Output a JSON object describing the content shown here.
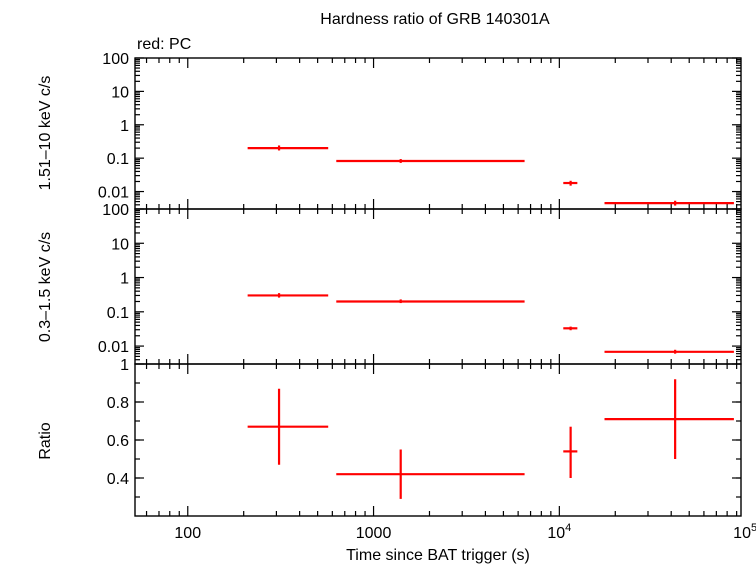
{
  "title": "Hardness ratio of GRB 140301A",
  "legend_text": "red: PC",
  "x_axis": {
    "label": "Time since BAT trigger (s)",
    "scale": "log",
    "ticks": [
      {
        "value": 100,
        "text": "100",
        "sup": ""
      },
      {
        "value": 1000,
        "text": "1000",
        "sup": ""
      },
      {
        "value": 10000,
        "text": "10",
        "sup": "4"
      },
      {
        "value": 100000,
        "text": "10",
        "sup": "5"
      }
    ],
    "range": [
      52,
      95000
    ]
  },
  "colors": {
    "data": "#ff0000",
    "axis": "#000000",
    "background": "#ffffff"
  },
  "chart_data": [
    {
      "type": "scatter",
      "panel": "hard",
      "ylabel": "1.51–10 keV c/s",
      "yscale": "log",
      "ylim": [
        0.003,
        100
      ],
      "yticks": [
        {
          "value": 100,
          "text": "100"
        },
        {
          "value": 10,
          "text": "10"
        },
        {
          "value": 1,
          "text": "1"
        },
        {
          "value": 0.1,
          "text": "0.1"
        },
        {
          "value": 0.01,
          "text": "0.01"
        }
      ],
      "points": [
        {
          "x": 310,
          "xlo": 210,
          "xhi": 570,
          "y": 0.2,
          "ylo": 0.17,
          "yhi": 0.24
        },
        {
          "x": 1400,
          "xlo": 630,
          "xhi": 6500,
          "y": 0.082,
          "ylo": 0.072,
          "yhi": 0.094
        },
        {
          "x": 11500,
          "xlo": 10500,
          "xhi": 12500,
          "y": 0.018,
          "ylo": 0.015,
          "yhi": 0.021
        },
        {
          "x": 42000,
          "xlo": 17500,
          "xhi": 87000,
          "y": 0.0045,
          "ylo": 0.0038,
          "yhi": 0.0053
        }
      ]
    },
    {
      "type": "scatter",
      "panel": "soft",
      "ylabel": "0.3–1.5 keV c/s",
      "yscale": "log",
      "ylim": [
        0.003,
        100
      ],
      "yticks": [
        {
          "value": 100,
          "text": "100"
        },
        {
          "value": 10,
          "text": "10"
        },
        {
          "value": 1,
          "text": "1"
        },
        {
          "value": 0.1,
          "text": "0.1"
        },
        {
          "value": 0.01,
          "text": "0.01"
        }
      ],
      "points": [
        {
          "x": 310,
          "xlo": 210,
          "xhi": 570,
          "y": 0.3,
          "ylo": 0.26,
          "yhi": 0.35
        },
        {
          "x": 1400,
          "xlo": 630,
          "xhi": 6500,
          "y": 0.2,
          "ylo": 0.18,
          "yhi": 0.23
        },
        {
          "x": 11500,
          "xlo": 10500,
          "xhi": 12500,
          "y": 0.033,
          "ylo": 0.029,
          "yhi": 0.037
        },
        {
          "x": 42000,
          "xlo": 17500,
          "xhi": 87000,
          "y": 0.0068,
          "ylo": 0.006,
          "yhi": 0.0078
        }
      ]
    },
    {
      "type": "scatter",
      "panel": "ratio",
      "ylabel": "Ratio",
      "yscale": "linear",
      "ylim": [
        0.2,
        1.0
      ],
      "yticks": [
        {
          "value": 1,
          "text": "1"
        },
        {
          "value": 0.8,
          "text": "0.8"
        },
        {
          "value": 0.6,
          "text": "0.6"
        },
        {
          "value": 0.4,
          "text": "0.4"
        }
      ],
      "points": [
        {
          "x": 310,
          "xlo": 210,
          "xhi": 570,
          "y": 0.67,
          "ylo": 0.47,
          "yhi": 0.87
        },
        {
          "x": 1400,
          "xlo": 630,
          "xhi": 6500,
          "y": 0.42,
          "ylo": 0.29,
          "yhi": 0.55
        },
        {
          "x": 11500,
          "xlo": 10500,
          "xhi": 12500,
          "y": 0.54,
          "ylo": 0.4,
          "yhi": 0.67
        },
        {
          "x": 42000,
          "xlo": 17500,
          "xhi": 87000,
          "y": 0.71,
          "ylo": 0.5,
          "yhi": 0.92
        }
      ]
    }
  ]
}
